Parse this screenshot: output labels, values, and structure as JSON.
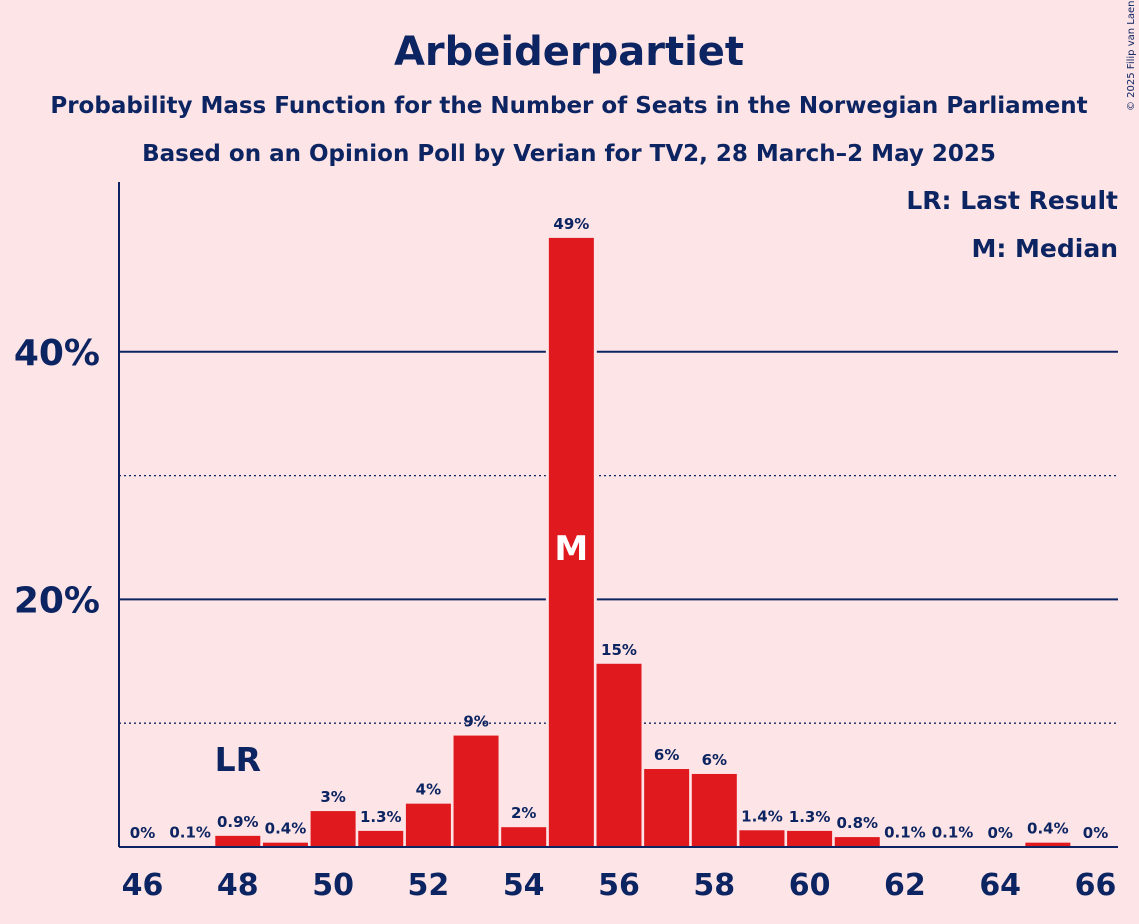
{
  "header": {
    "title": "Arbeiderpartiet",
    "subtitle1": "Probability Mass Function for the Number of Seats in the Norwegian Parliament",
    "subtitle2": "Based on an Opinion Poll by Verian for TV2, 28 March–2 May 2025"
  },
  "legend": {
    "lr": "LR: Last Result",
    "m": "M: Median"
  },
  "copyright": "© 2025 Filip van Laenen",
  "colors": {
    "background": "#fde4e6",
    "bar": "#e0191f",
    "text": "#0c2461"
  },
  "chart_data": {
    "type": "bar",
    "x": [
      46,
      47,
      48,
      49,
      50,
      51,
      52,
      53,
      54,
      55,
      56,
      57,
      58,
      59,
      60,
      61,
      62,
      63,
      64,
      65,
      66
    ],
    "values": [
      0,
      0.1,
      0.9,
      0.4,
      3,
      1.3,
      4,
      9,
      2,
      49,
      15,
      6,
      6,
      1.4,
      1.3,
      0.8,
      0.1,
      0.1,
      0,
      0.4,
      0
    ],
    "bar_heights_estimated": [
      0,
      0.05,
      0.9,
      0.35,
      2.9,
      1.3,
      3.5,
      9.0,
      1.6,
      49.2,
      14.8,
      6.3,
      5.9,
      1.35,
      1.3,
      0.8,
      0.05,
      0.05,
      0,
      0.35,
      0
    ],
    "data_labels": [
      "0%",
      "0.1%",
      "0.9%",
      "0.4%",
      "3%",
      "1.3%",
      "4%",
      "9%",
      "2%",
      "49%",
      "15%",
      "6%",
      "6%",
      "1.4%",
      "1.3%",
      "0.8%",
      "0.1%",
      "0.1%",
      "0%",
      "0.4%",
      "0%"
    ],
    "x_tick_labels": [
      "46",
      "48",
      "50",
      "52",
      "54",
      "56",
      "58",
      "60",
      "62",
      "64",
      "66"
    ],
    "y_tick_labels": [
      "20%",
      "40%"
    ],
    "ylim": [
      0,
      53.5
    ],
    "solid_gridlines": [
      20,
      40
    ],
    "dotted_gridlines": [
      10,
      30
    ],
    "last_result": {
      "seats": 48,
      "label": "LR"
    },
    "median": {
      "seats": 55,
      "label": "M"
    }
  }
}
